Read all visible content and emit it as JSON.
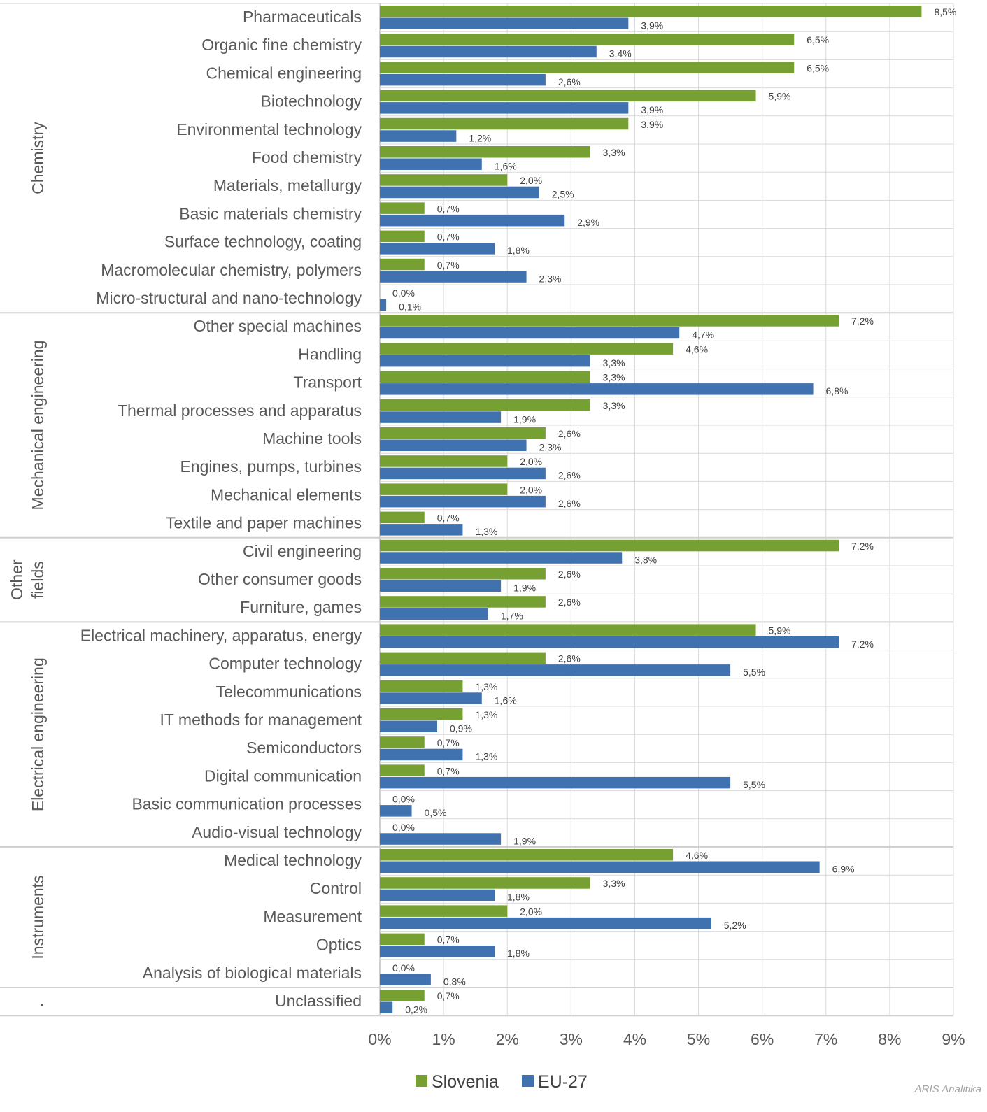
{
  "chart_data": {
    "type": "bar",
    "orientation": "horizontal",
    "title": "",
    "xlabel": "",
    "ylabel": "",
    "xlim": [
      0,
      9
    ],
    "x_ticks": [
      "0%",
      "1%",
      "2%",
      "3%",
      "4%",
      "5%",
      "6%",
      "7%",
      "8%",
      "9%"
    ],
    "grid": true,
    "legend_position": "bottom",
    "credit": "ARIS Analitika",
    "series": [
      {
        "name": "Slovenia",
        "color": "#77A033"
      },
      {
        "name": "EU-27",
        "color": "#3F72AF"
      }
    ],
    "groups": [
      {
        "name": "Chemistry",
        "lines": [
          "Chemistry"
        ],
        "categories": [
          {
            "label": "Pharmaceuticals",
            "slovenia": 8.5,
            "eu27": 3.9,
            "slovenia_label": "8,5%",
            "eu27_label": "3,9%"
          },
          {
            "label": "Organic fine chemistry",
            "slovenia": 6.5,
            "eu27": 3.4,
            "slovenia_label": "6,5%",
            "eu27_label": "3,4%"
          },
          {
            "label": "Chemical engineering",
            "slovenia": 6.5,
            "eu27": 2.6,
            "slovenia_label": "6,5%",
            "eu27_label": "2,6%"
          },
          {
            "label": "Biotechnology",
            "slovenia": 5.9,
            "eu27": 3.9,
            "slovenia_label": "5,9%",
            "eu27_label": "3,9%"
          },
          {
            "label": "Environmental technology",
            "slovenia": 3.9,
            "eu27": 1.2,
            "slovenia_label": "3,9%",
            "eu27_label": "1,2%"
          },
          {
            "label": "Food chemistry",
            "slovenia": 3.3,
            "eu27": 1.6,
            "slovenia_label": "3,3%",
            "eu27_label": "1,6%"
          },
          {
            "label": "Materials, metallurgy",
            "slovenia": 2.0,
            "eu27": 2.5,
            "slovenia_label": "2,0%",
            "eu27_label": "2,5%"
          },
          {
            "label": "Basic materials chemistry",
            "slovenia": 0.7,
            "eu27": 2.9,
            "slovenia_label": "0,7%",
            "eu27_label": "2,9%"
          },
          {
            "label": "Surface technology, coating",
            "slovenia": 0.7,
            "eu27": 1.8,
            "slovenia_label": "0,7%",
            "eu27_label": "1,8%"
          },
          {
            "label": "Macromolecular chemistry, polymers",
            "slovenia": 0.7,
            "eu27": 2.3,
            "slovenia_label": "0,7%",
            "eu27_label": "2,3%"
          },
          {
            "label": "Micro-structural and nano-technology",
            "slovenia": 0.0,
            "eu27": 0.1,
            "slovenia_label": "0,0%",
            "eu27_label": "0,1%"
          }
        ]
      },
      {
        "name": "Mechanical engineering",
        "lines": [
          "Mechanical engineering"
        ],
        "categories": [
          {
            "label": "Other special machines",
            "slovenia": 7.2,
            "eu27": 4.7,
            "slovenia_label": "7,2%",
            "eu27_label": "4,7%"
          },
          {
            "label": "Handling",
            "slovenia": 4.6,
            "eu27": 3.3,
            "slovenia_label": "4,6%",
            "eu27_label": "3,3%"
          },
          {
            "label": "Transport",
            "slovenia": 3.3,
            "eu27": 6.8,
            "slovenia_label": "3,3%",
            "eu27_label": "6,8%"
          },
          {
            "label": "Thermal processes and apparatus",
            "slovenia": 3.3,
            "eu27": 1.9,
            "slovenia_label": "3,3%",
            "eu27_label": "1,9%"
          },
          {
            "label": "Machine tools",
            "slovenia": 2.6,
            "eu27": 2.3,
            "slovenia_label": "2,6%",
            "eu27_label": "2,3%"
          },
          {
            "label": "Engines, pumps, turbines",
            "slovenia": 2.0,
            "eu27": 2.6,
            "slovenia_label": "2,0%",
            "eu27_label": "2,6%"
          },
          {
            "label": "Mechanical elements",
            "slovenia": 2.0,
            "eu27": 2.6,
            "slovenia_label": "2,0%",
            "eu27_label": "2,6%"
          },
          {
            "label": "Textile and paper machines",
            "slovenia": 0.7,
            "eu27": 1.3,
            "slovenia_label": "0,7%",
            "eu27_label": "1,3%"
          }
        ]
      },
      {
        "name": "Other fields",
        "lines": [
          "Other",
          "fields"
        ],
        "categories": [
          {
            "label": "Civil engineering",
            "slovenia": 7.2,
            "eu27": 3.8,
            "slovenia_label": "7,2%",
            "eu27_label": "3,8%"
          },
          {
            "label": "Other consumer goods",
            "slovenia": 2.6,
            "eu27": 1.9,
            "slovenia_label": "2,6%",
            "eu27_label": "1,9%"
          },
          {
            "label": "Furniture, games",
            "slovenia": 2.6,
            "eu27": 1.7,
            "slovenia_label": "2,6%",
            "eu27_label": "1,7%"
          }
        ]
      },
      {
        "name": "Electrical engineering",
        "lines": [
          "Electrical engineering"
        ],
        "categories": [
          {
            "label": "Electrical machinery, apparatus, energy",
            "slovenia": 5.9,
            "eu27": 7.2,
            "slovenia_label": "5,9%",
            "eu27_label": "7,2%"
          },
          {
            "label": "Computer technology",
            "slovenia": 2.6,
            "eu27": 5.5,
            "slovenia_label": "2,6%",
            "eu27_label": "5,5%"
          },
          {
            "label": "Telecommunications",
            "slovenia": 1.3,
            "eu27": 1.6,
            "slovenia_label": "1,3%",
            "eu27_label": "1,6%"
          },
          {
            "label": "IT methods for management",
            "slovenia": 1.3,
            "eu27": 0.9,
            "slovenia_label": "1,3%",
            "eu27_label": "0,9%"
          },
          {
            "label": "Semiconductors",
            "slovenia": 0.7,
            "eu27": 1.3,
            "slovenia_label": "0,7%",
            "eu27_label": "1,3%"
          },
          {
            "label": "Digital communication",
            "slovenia": 0.7,
            "eu27": 5.5,
            "slovenia_label": "0,7%",
            "eu27_label": "5,5%"
          },
          {
            "label": "Basic communication processes",
            "slovenia": 0.0,
            "eu27": 0.5,
            "slovenia_label": "0,0%",
            "eu27_label": "0,5%"
          },
          {
            "label": "Audio-visual technology",
            "slovenia": 0.0,
            "eu27": 1.9,
            "slovenia_label": "0,0%",
            "eu27_label": "1,9%"
          }
        ]
      },
      {
        "name": "Instruments",
        "lines": [
          "Instruments"
        ],
        "categories": [
          {
            "label": "Medical technology",
            "slovenia": 4.6,
            "eu27": 6.9,
            "slovenia_label": "4,6%",
            "eu27_label": "6,9%"
          },
          {
            "label": "Control",
            "slovenia": 3.3,
            "eu27": 1.8,
            "slovenia_label": "3,3%",
            "eu27_label": "1,8%"
          },
          {
            "label": "Measurement",
            "slovenia": 2.0,
            "eu27": 5.2,
            "slovenia_label": "2,0%",
            "eu27_label": "5,2%"
          },
          {
            "label": "Optics",
            "slovenia": 0.7,
            "eu27": 1.8,
            "slovenia_label": "0,7%",
            "eu27_label": "1,8%"
          },
          {
            "label": "Analysis of biological materials",
            "slovenia": 0.0,
            "eu27": 0.8,
            "slovenia_label": "0,0%",
            "eu27_label": "0,8%"
          }
        ]
      },
      {
        "name": ".",
        "lines": [
          "."
        ],
        "categories": [
          {
            "label": "Unclassified",
            "slovenia": 0.7,
            "eu27": 0.2,
            "slovenia_label": "0,7%",
            "eu27_label": "0,2%"
          }
        ]
      }
    ]
  }
}
